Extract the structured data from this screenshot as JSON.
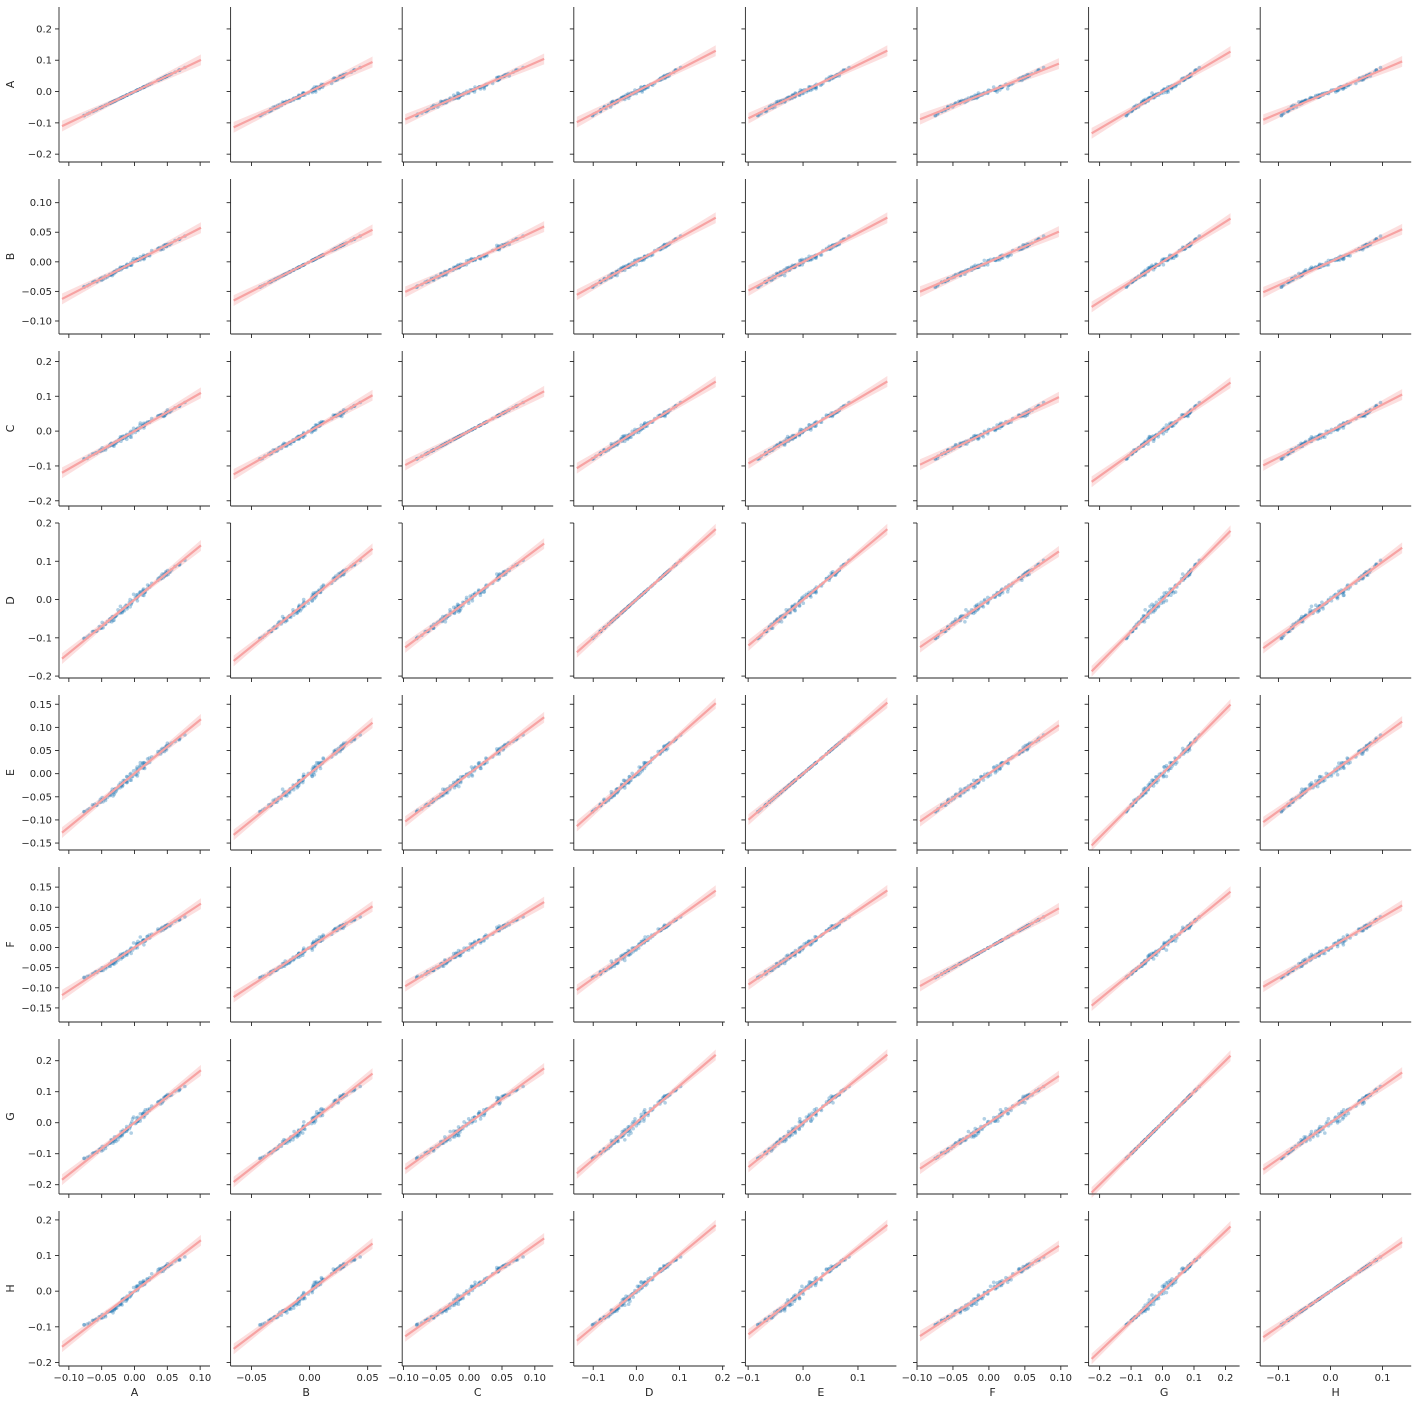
{
  "chart_data": {
    "type": "scatter",
    "variables": [
      "A",
      "B",
      "C",
      "D",
      "E",
      "F",
      "G",
      "H"
    ],
    "ranges": {
      "A": [
        -0.115,
        0.115
      ],
      "B": [
        -0.068,
        0.062
      ],
      "C": [
        -0.102,
        0.128
      ],
      "D": [
        -0.145,
        0.205
      ],
      "E": [
        -0.105,
        0.17
      ],
      "F": [
        -0.1,
        0.11
      ],
      "G": [
        -0.235,
        0.245
      ],
      "H": [
        -0.135,
        0.155
      ]
    },
    "y_ranges": {
      "A": [
        -0.225,
        0.27
      ],
      "B": [
        -0.122,
        0.14
      ],
      "C": [
        -0.215,
        0.23
      ],
      "D": [
        -0.205,
        0.2
      ],
      "E": [
        -0.165,
        0.17
      ],
      "F": [
        -0.185,
        0.2
      ],
      "G": [
        -0.23,
        0.27
      ],
      "H": [
        -0.21,
        0.225
      ]
    },
    "std": {
      "A": 0.04,
      "B": 0.022,
      "C": 0.04,
      "D": 0.05,
      "E": 0.04,
      "F": 0.036,
      "G": 0.055,
      "H": 0.045
    },
    "x_ticks": {
      "A": [
        -0.1,
        -0.05,
        0.0,
        0.05,
        0.1
      ],
      "B": [
        -0.05,
        0.0,
        0.05
      ],
      "C": [
        -0.1,
        -0.05,
        0.0,
        0.05,
        0.1
      ],
      "D": [
        -0.1,
        0.0,
        0.1,
        0.2
      ],
      "E": [
        -0.1,
        0.0,
        0.1
      ],
      "F": [
        -0.1,
        -0.05,
        0.0,
        0.05,
        0.1
      ],
      "G": [
        -0.2,
        -0.1,
        0.0,
        0.1,
        0.2
      ],
      "H": [
        -0.1,
        0.0,
        0.1
      ]
    },
    "x_tick_labels": {
      "A": [
        "−0.10",
        "−0.05",
        "0.00",
        "0.05",
        "0.10"
      ],
      "B": [
        "−0.05",
        "0.00",
        "0.05"
      ],
      "C": [
        "−0.10",
        "−0.05",
        "0.00",
        "0.05",
        "0.10"
      ],
      "D": [
        "−0.1",
        "0.0",
        "0.1",
        "0.2"
      ],
      "E": [
        "−0.1",
        "0.0",
        "0.1"
      ],
      "F": [
        "−0.10",
        "−0.05",
        "0.00",
        "0.05",
        "0.10"
      ],
      "G": [
        "−0.2",
        "−0.1",
        "0.0",
        "0.1",
        "0.2"
      ],
      "H": [
        "−0.1",
        "0.0",
        "0.1"
      ]
    },
    "y_ticks": {
      "A": [
        -0.2,
        -0.1,
        0.0,
        0.1,
        0.2
      ],
      "B": [
        -0.1,
        -0.05,
        0.0,
        0.05,
        0.1
      ],
      "C": [
        -0.2,
        -0.1,
        0.0,
        0.1,
        0.2
      ],
      "D": [
        -0.2,
        -0.1,
        0.0,
        0.1,
        0.2
      ],
      "E": [
        -0.15,
        -0.1,
        -0.05,
        0.0,
        0.05,
        0.1,
        0.15
      ],
      "F": [
        -0.15,
        -0.1,
        -0.05,
        0.0,
        0.05,
        0.1,
        0.15
      ],
      "G": [
        -0.2,
        -0.1,
        0.0,
        0.1,
        0.2
      ],
      "H": [
        -0.2,
        -0.1,
        0.0,
        0.1,
        0.2
      ]
    },
    "y_tick_labels": {
      "A": [
        "−0.2",
        "−0.1",
        "0.0",
        "0.1",
        "0.2"
      ],
      "B": [
        "−0.10",
        "−0.05",
        "0.00",
        "0.05",
        "0.10"
      ],
      "C": [
        "−0.2",
        "−0.1",
        "0.0",
        "0.1",
        "0.2"
      ],
      "D": [
        "−0.2",
        "−0.1",
        "0.0",
        "0.1",
        "0.2"
      ],
      "E": [
        "−0.15",
        "−0.10",
        "−0.05",
        "0.00",
        "0.05",
        "0.10",
        "0.15"
      ],
      "F": [
        "−0.15",
        "−0.10",
        "−0.05",
        "0.00",
        "0.05",
        "0.10",
        "0.15"
      ],
      "G": [
        "−0.2",
        "−0.1",
        "0.0",
        "0.1",
        "0.2"
      ],
      "H": [
        "−0.2",
        "−0.1",
        "0.0",
        "0.1",
        "0.2"
      ]
    },
    "grid": false,
    "legend": "none",
    "point_color": "#1f77b4",
    "fit_color": "#f7a3a3"
  }
}
